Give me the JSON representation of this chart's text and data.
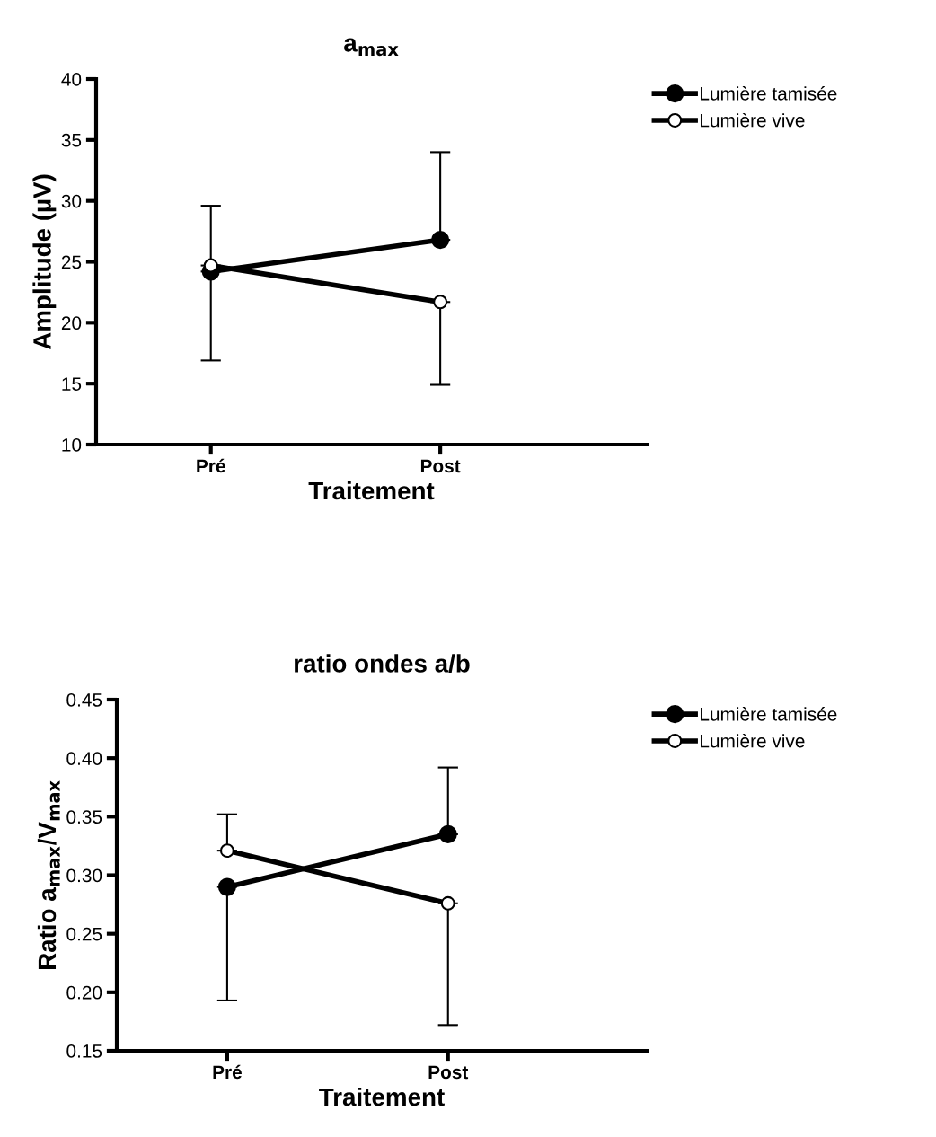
{
  "chart_data": [
    {
      "type": "line",
      "title": "a$_{max}$",
      "xlabel": "Traitement",
      "ylabel": "Amplitude (µV)",
      "categories": [
        "Pré",
        "Post"
      ],
      "ylim": [
        10,
        40
      ],
      "yticks": [
        10,
        15,
        20,
        25,
        30,
        35,
        40
      ],
      "grid": false,
      "legend": "top right",
      "marker": "circle",
      "line_style": "solid",
      "series": [
        {
          "name": "Lumière tamisée",
          "color": "#000000",
          "values": [
            24.2,
            26.8
          ],
          "errors": [
            [
              16.9,
              24.2
            ],
            [
              26.8,
              34.0
            ]
          ]
        },
        {
          "name": "Lumière vive",
          "color": "#000000",
          "values": [
            24.7,
            21.7
          ],
          "errors": [
            [
              24.7,
              29.6
            ],
            [
              14.9,
              21.7
            ]
          ]
        }
      ]
    },
    {
      "type": "line",
      "title": "ratio ondes a/b",
      "xlabel": "Traitement",
      "ylabel": "Ratio a$_{max}$/V$_{max}$",
      "categories": [
        "Pré",
        "Post"
      ],
      "ylim": [
        0.15,
        0.45
      ],
      "yticks": [
        {
          "value": 0.15,
          "label": "0.15"
        },
        {
          "value": 0.2,
          "label": "0.20"
        },
        {
          "value": 0.25,
          "label": "0.25"
        },
        {
          "value": 0.3,
          "label": "0.30"
        },
        {
          "value": 0.35,
          "label": "0.35"
        },
        {
          "value": 0.4,
          "label": "0.40"
        },
        {
          "value": 0.45,
          "label": "0.45"
        }
      ],
      "grid": false,
      "legend": "top right",
      "marker": "circle",
      "line_style": "solid",
      "series": [
        {
          "name": "Lumière tamisée",
          "color": "#000000",
          "values": [
            0.29,
            0.335
          ],
          "errors": [
            [
              0.193,
              0.29
            ],
            [
              0.335,
              0.392
            ]
          ]
        },
        {
          "name": "Lumière vive",
          "color": "#000000",
          "values": [
            0.321,
            0.276
          ],
          "errors": [
            [
              0.321,
              0.352
            ],
            [
              0.172,
              0.276
            ]
          ]
        }
      ]
    }
  ]
}
